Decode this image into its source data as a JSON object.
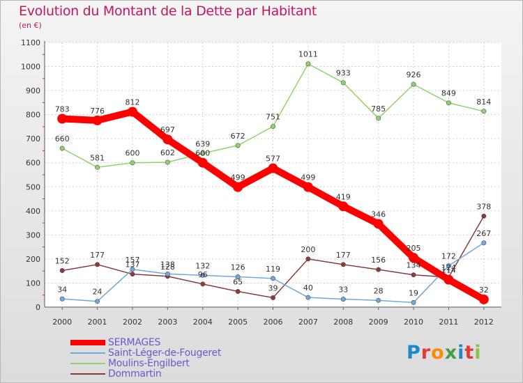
{
  "chart_data": {
    "type": "line",
    "title": "Evolution du Montant de la Dette par Habitant",
    "subtitle": "(en €)",
    "x": [
      "2000",
      "2001",
      "2002",
      "2003",
      "2004",
      "2005",
      "2006",
      "2007",
      "2008",
      "2009",
      "2010",
      "2011",
      "2012"
    ],
    "ylim": [
      0,
      1100
    ],
    "yticks": [
      "0",
      "100",
      "200",
      "300",
      "400",
      "500",
      "600",
      "700",
      "800",
      "900",
      "1000",
      "1100"
    ],
    "grid": true,
    "legend_position": "bottom-left",
    "series": [
      {
        "name": "SERMAGES",
        "color": "#ff0000",
        "values": [
          783,
          776,
          812,
          697,
          600,
          499,
          577,
          499,
          419,
          346,
          205,
          114,
          32
        ]
      },
      {
        "name": "Saint-Léger-de-Fougeret",
        "color": "#6fa8dc",
        "values": [
          34,
          24,
          157,
          138,
          132,
          126,
          119,
          40,
          33,
          28,
          19,
          172,
          267
        ]
      },
      {
        "name": "Moulins-Engilbert",
        "color": "#8ed36b",
        "values": [
          660,
          581,
          600,
          602,
          639,
          672,
          751,
          1011,
          933,
          785,
          926,
          849,
          814
        ]
      },
      {
        "name": "Dommartin",
        "color": "#8b3a3a",
        "values": [
          152,
          177,
          137,
          128,
          96,
          65,
          39,
          200,
          177,
          156,
          134,
          124,
          378
        ]
      }
    ]
  },
  "logo": {
    "letters": [
      "P",
      "r",
      "o",
      "x",
      "i",
      "t",
      "i"
    ]
  }
}
